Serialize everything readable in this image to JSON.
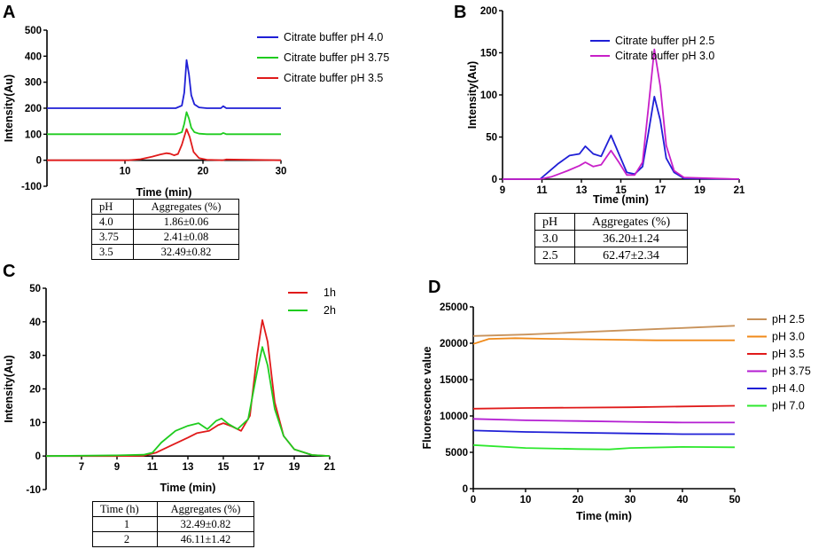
{
  "panels": [
    {
      "id": "A",
      "label": "A"
    },
    {
      "id": "B",
      "label": "B"
    },
    {
      "id": "C",
      "label": "C"
    },
    {
      "id": "D",
      "label": "D"
    }
  ],
  "chart_data": [
    {
      "panel": "A",
      "type": "line",
      "title": "",
      "xlabel": "Time (min)",
      "ylabel": "Intensity(Au)",
      "xlim": [
        0,
        30
      ],
      "ylim": [
        -100,
        500
      ],
      "xticks": [
        10,
        20,
        30
      ],
      "yticks": [
        -100,
        0,
        100,
        200,
        300,
        400,
        500
      ],
      "legend_position": "top-right",
      "series": [
        {
          "name": "Citrate buffer pH 4.0",
          "color": "#1f1fd6",
          "x": [
            0,
            16.5,
            17.3,
            17.6,
            17.9,
            18.2,
            18.5,
            18.9,
            19.5,
            20.5,
            22.3,
            22.6,
            23.0,
            30
          ],
          "y": [
            200,
            200,
            210,
            260,
            385,
            330,
            250,
            215,
            203,
            200,
            200,
            208,
            200,
            200
          ]
        },
        {
          "name": "Citrate buffer pH 3.75",
          "color": "#1fcc1f",
          "x": [
            0,
            16.5,
            17.3,
            17.6,
            17.9,
            18.2,
            18.5,
            18.9,
            19.5,
            20.5,
            22.3,
            22.6,
            23.0,
            30
          ],
          "y": [
            100,
            100,
            108,
            140,
            185,
            160,
            125,
            108,
            102,
            100,
            100,
            105,
            100,
            100
          ]
        },
        {
          "name": "Citrate buffer pH 3.5",
          "color": "#e01a1a",
          "x": [
            0,
            10.5,
            12,
            13.5,
            14.5,
            15.3,
            15.8,
            16.3,
            16.8,
            17.3,
            17.9,
            18.3,
            18.8,
            19.5,
            20.5,
            22.5,
            23,
            30
          ],
          "y": [
            0,
            0,
            4,
            14,
            22,
            27,
            25,
            19,
            24,
            60,
            120,
            90,
            32,
            8,
            2,
            0,
            3,
            0
          ]
        }
      ],
      "table": {
        "columns": [
          "pH",
          "Aggregates (%)"
        ],
        "rows": [
          [
            "4.0",
            "1.86±0.06"
          ],
          [
            "3.75",
            "2.41±0.08"
          ],
          [
            "3.5",
            "32.49±0.82"
          ]
        ]
      }
    },
    {
      "panel": "B",
      "type": "line",
      "title": "",
      "xlabel": "Time (min)",
      "ylabel": "Intensity(Au)",
      "xlim": [
        9,
        21
      ],
      "ylim": [
        0,
        200
      ],
      "xticks": [
        9,
        11,
        13,
        15,
        17,
        19,
        21
      ],
      "yticks": [
        0,
        50,
        100,
        150,
        200
      ],
      "legend_position": "top-right",
      "series": [
        {
          "name": "Citrate buffer pH 2.5",
          "color": "#1f1fd6",
          "x": [
            9,
            10.9,
            11.3,
            11.8,
            12.4,
            12.9,
            13.2,
            13.6,
            14.0,
            14.5,
            14.9,
            15.3,
            15.7,
            16.1,
            16.4,
            16.7,
            17.0,
            17.3,
            17.7,
            18.2,
            21
          ],
          "y": [
            0,
            0,
            8,
            18,
            28,
            30,
            39,
            30,
            27,
            52,
            30,
            8,
            6,
            15,
            55,
            98,
            70,
            25,
            8,
            1,
            0
          ]
        },
        {
          "name": "Citrate buffer pH 3.0",
          "color": "#c81fc8",
          "x": [
            9,
            10.9,
            11.5,
            12.3,
            12.9,
            13.2,
            13.6,
            14.0,
            14.5,
            14.9,
            15.3,
            15.7,
            16.1,
            16.4,
            16.7,
            17.0,
            17.3,
            17.7,
            18.2,
            21
          ],
          "y": [
            0,
            0,
            3,
            10,
            16,
            20,
            15,
            17,
            34,
            20,
            5,
            5,
            20,
            85,
            154,
            110,
            40,
            10,
            2,
            0
          ]
        }
      ],
      "table": {
        "columns": [
          "pH",
          "Aggregates (%)"
        ],
        "rows": [
          [
            "3.0",
            "36.20±1.24"
          ],
          [
            "2.5",
            "62.47±2.34"
          ]
        ]
      }
    },
    {
      "panel": "C",
      "type": "line",
      "title": "",
      "xlabel": "Time (min)",
      "ylabel": "Intensity(Au)",
      "xlim": [
        5,
        21
      ],
      "ylim": [
        -10,
        50
      ],
      "xticks": [
        7,
        9,
        11,
        13,
        15,
        17,
        19,
        21
      ],
      "yticks": [
        -10,
        0,
        10,
        20,
        30,
        40,
        50
      ],
      "legend_position": "top-right",
      "series": [
        {
          "name": "1h",
          "color": "#e01a1a",
          "x": [
            5,
            9,
            10.5,
            11.2,
            12,
            13,
            13.5,
            14.2,
            14.7,
            15.0,
            15.5,
            16.0,
            16.5,
            16.9,
            17.2,
            17.5,
            17.9,
            18.4,
            19.0,
            20,
            21
          ],
          "y": [
            0,
            0,
            0.1,
            1,
            3,
            5.5,
            6.8,
            7.5,
            9.2,
            9.8,
            8.8,
            7.5,
            12,
            30,
            40.5,
            34,
            16,
            6,
            2,
            0.3,
            0
          ]
        },
        {
          "name": "2h",
          "color": "#1fcc1f",
          "x": [
            5,
            9,
            10.5,
            11.0,
            11.5,
            12.3,
            13.0,
            13.6,
            14.1,
            14.6,
            14.9,
            15.3,
            15.8,
            16.4,
            16.9,
            17.2,
            17.5,
            17.9,
            18.4,
            19.0,
            20,
            21
          ],
          "y": [
            0,
            0.2,
            0.4,
            1,
            4,
            7.5,
            9,
            9.8,
            8,
            10.5,
            11.2,
            9.5,
            8,
            11,
            25,
            32.5,
            27,
            14,
            6,
            2,
            0.3,
            0
          ]
        }
      ],
      "table": {
        "columns": [
          "Time (h)",
          "Aggregates (%)"
        ],
        "rows": [
          [
            "1",
            "32.49±0.82"
          ],
          [
            "2",
            "46.11±1.42"
          ]
        ]
      }
    },
    {
      "panel": "D",
      "type": "line",
      "title": "",
      "xlabel": "Time (min)",
      "ylabel": "Fluorescence value",
      "xlim": [
        0,
        50
      ],
      "ylim": [
        0,
        25000
      ],
      "xticks": [
        0,
        10,
        20,
        30,
        40,
        50
      ],
      "yticks": [
        0,
        5000,
        10000,
        15000,
        20000,
        25000
      ],
      "legend_position": "right",
      "series": [
        {
          "name": "pH 2.5",
          "color": "#c8925a",
          "x": [
            0,
            10,
            20,
            30,
            40,
            50
          ],
          "y": [
            21000,
            21200,
            21500,
            21800,
            22100,
            22400
          ]
        },
        {
          "name": "pH 3.0",
          "color": "#f08a1a",
          "x": [
            0,
            3,
            8,
            15,
            25,
            35,
            50
          ],
          "y": [
            19900,
            20600,
            20700,
            20600,
            20500,
            20400,
            20400
          ]
        },
        {
          "name": "pH 3.5",
          "color": "#e01a1a",
          "x": [
            0,
            10,
            20,
            30,
            40,
            50
          ],
          "y": [
            11000,
            11100,
            11150,
            11200,
            11300,
            11400
          ]
        },
        {
          "name": "pH 3.75",
          "color": "#b41ed2",
          "x": [
            0,
            10,
            20,
            30,
            40,
            50
          ],
          "y": [
            9600,
            9400,
            9300,
            9200,
            9100,
            9100
          ]
        },
        {
          "name": "pH 4.0",
          "color": "#1f1fd6",
          "x": [
            0,
            10,
            20,
            30,
            40,
            50
          ],
          "y": [
            8000,
            7800,
            7700,
            7600,
            7500,
            7500
          ]
        },
        {
          "name": "pH 7.0",
          "color": "#2ee82e",
          "x": [
            0,
            10,
            20,
            26,
            30,
            40,
            50
          ],
          "y": [
            6000,
            5600,
            5450,
            5400,
            5600,
            5750,
            5700
          ]
        }
      ]
    }
  ]
}
